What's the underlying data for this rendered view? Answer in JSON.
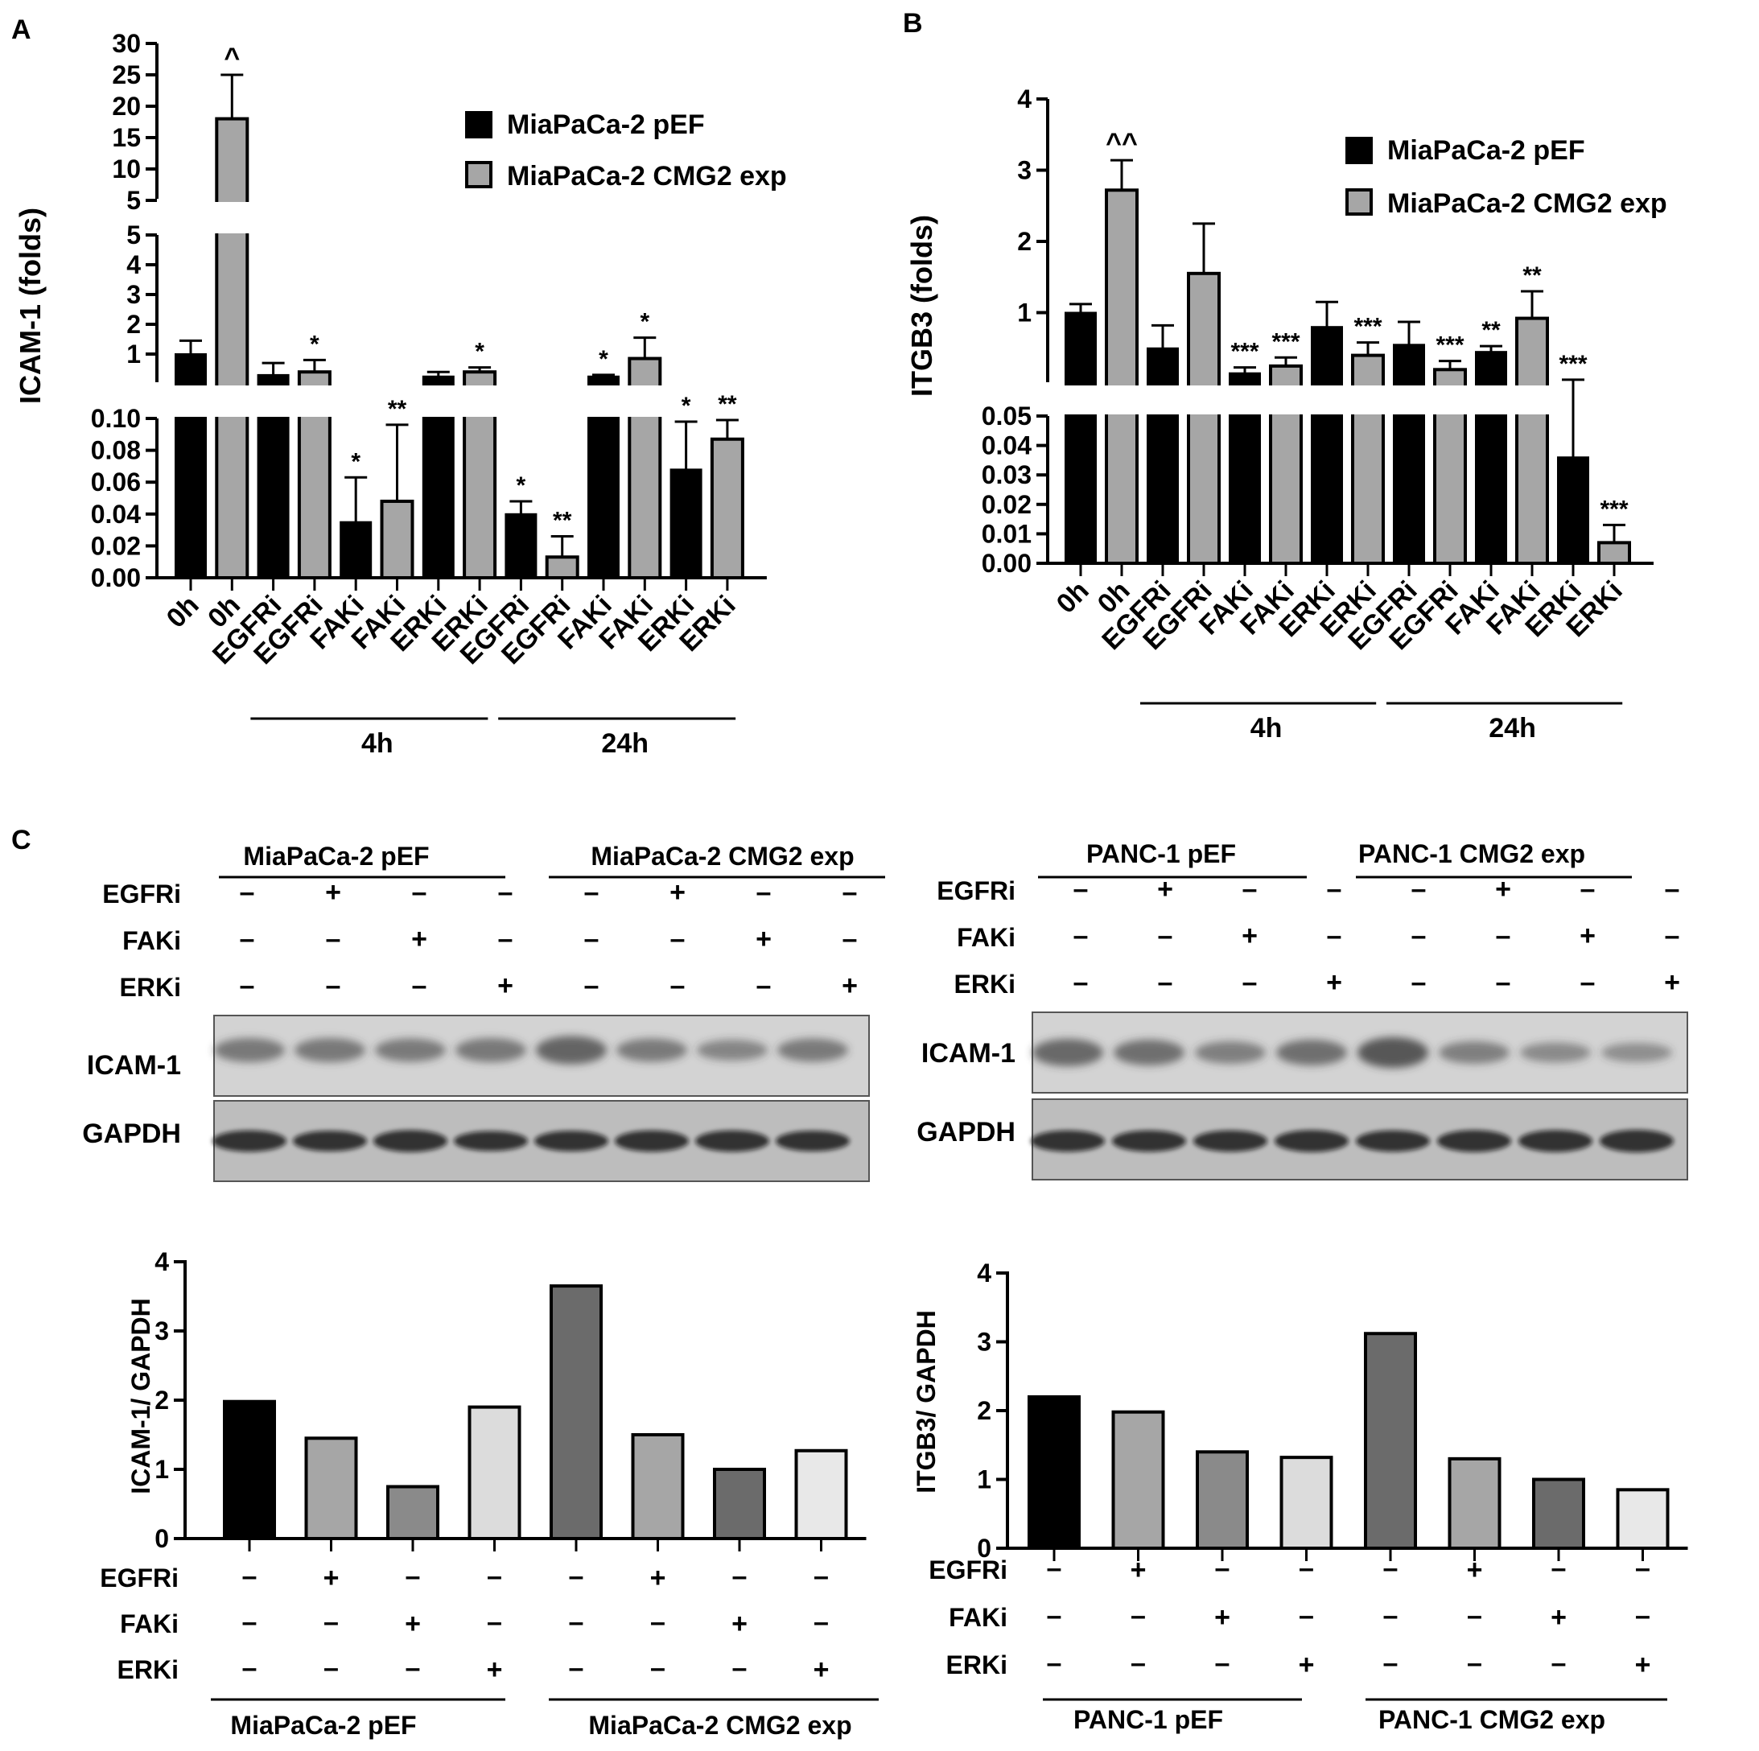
{
  "panels": {
    "a": "A",
    "b": "B",
    "c": "C"
  },
  "legend": {
    "black": "MiaPaCa-2 pEF",
    "gray": "MiaPaCa-2 CMG2 exp"
  },
  "colors": {
    "black": "#000000",
    "gray": "#a6a6a6",
    "dark": "#6b6b6b",
    "mid": "#8a8a8a",
    "light": "#dcdcdc",
    "blot_bg": "#d9d9d9"
  },
  "treatments": [
    "0h",
    "0h",
    "EGFRi",
    "EGFRi",
    "FAKi",
    "FAKi",
    "ERKi",
    "ERKi",
    "EGFRi",
    "EGFRi",
    "FAKi",
    "FAKi",
    "ERKi",
    "ERKi"
  ],
  "time_groups": [
    "4h",
    "24h"
  ],
  "chart_data": [
    {
      "type": "bar",
      "panel": "A",
      "ylabel": "ICAM-1 (folds)",
      "categories": [
        "0h",
        "0h",
        "EGFRi",
        "EGFRi",
        "FAKi",
        "FAKi",
        "ERKi",
        "ERKi",
        "EGFRi",
        "EGFRi",
        "FAKi",
        "FAKi",
        "ERKi",
        "ERKi"
      ],
      "groups": [
        "",
        "",
        "4h",
        "4h",
        "4h",
        "4h",
        "4h",
        "4h",
        "24h",
        "24h",
        "24h",
        "24h",
        "24h",
        "24h"
      ],
      "series_of_bar": [
        "MiaPaCa-2 pEF",
        "MiaPaCa-2 CMG2 exp",
        "MiaPaCa-2 pEF",
        "MiaPaCa-2 CMG2 exp",
        "MiaPaCa-2 pEF",
        "MiaPaCa-2 CMG2 exp",
        "MiaPaCa-2 pEF",
        "MiaPaCa-2 CMG2 exp",
        "MiaPaCa-2 pEF",
        "MiaPaCa-2 CMG2 exp",
        "MiaPaCa-2 pEF",
        "MiaPaCa-2 CMG2 exp",
        "MiaPaCa-2 pEF",
        "MiaPaCa-2 CMG2 exp"
      ],
      "values": [
        1.0,
        18.0,
        0.3,
        0.4,
        0.035,
        0.048,
        0.25,
        0.4,
        0.04,
        0.013,
        0.25,
        0.85,
        0.068,
        0.087
      ],
      "errors": [
        0.45,
        7.0,
        0.4,
        0.4,
        0.028,
        0.048,
        0.15,
        0.15,
        0.008,
        0.013,
        0.05,
        0.7,
        0.03,
        0.012
      ],
      "significance": [
        "",
        "^",
        "",
        "*",
        "*",
        "**",
        "",
        "*",
        "*",
        "**",
        "*",
        "*",
        "*",
        "**"
      ],
      "axis_segments": [
        {
          "range": [
            0,
            0.1
          ],
          "ticks": [
            "0.00",
            "0.02",
            "0.04",
            "0.06",
            "0.08",
            "0.10"
          ]
        },
        {
          "range": [
            0,
            5
          ],
          "ticks": [
            "1",
            "2",
            "3",
            "4",
            "5"
          ]
        },
        {
          "range": [
            5,
            30
          ],
          "ticks": [
            "5",
            "10",
            "15",
            "20",
            "25",
            "30"
          ]
        }
      ]
    },
    {
      "type": "bar",
      "panel": "B",
      "ylabel": "ITGB3 (folds)",
      "categories": [
        "0h",
        "0h",
        "EGFRi",
        "EGFRi",
        "FAKi",
        "FAKi",
        "ERKi",
        "ERKi",
        "EGFRi",
        "EGFRi",
        "FAKi",
        "FAKi",
        "ERKi",
        "ERKi"
      ],
      "groups": [
        "",
        "",
        "4h",
        "4h",
        "4h",
        "4h",
        "4h",
        "4h",
        "24h",
        "24h",
        "24h",
        "24h",
        "24h",
        "24h"
      ],
      "series_of_bar": [
        "MiaPaCa-2 pEF",
        "MiaPaCa-2 CMG2 exp",
        "MiaPaCa-2 pEF",
        "MiaPaCa-2 CMG2 exp",
        "MiaPaCa-2 pEF",
        "MiaPaCa-2 CMG2 exp",
        "MiaPaCa-2 pEF",
        "MiaPaCa-2 CMG2 exp",
        "MiaPaCa-2 pEF",
        "MiaPaCa-2 CMG2 exp",
        "MiaPaCa-2 pEF",
        "MiaPaCa-2 CMG2 exp",
        "MiaPaCa-2 pEF",
        "MiaPaCa-2 CMG2 exp"
      ],
      "values": [
        1.0,
        2.72,
        0.5,
        1.55,
        0.15,
        0.25,
        0.8,
        0.4,
        0.55,
        0.2,
        0.45,
        0.92,
        0.036,
        0.007
      ],
      "errors": [
        0.12,
        0.42,
        0.32,
        0.7,
        0.08,
        0.12,
        0.35,
        0.18,
        0.32,
        0.12,
        0.08,
        0.38,
        0.022,
        0.006
      ],
      "significance": [
        "",
        "^^",
        "",
        "",
        "***",
        "***",
        "",
        "***",
        "",
        "***",
        "**",
        "**",
        "***",
        "***"
      ],
      "axis_segments": [
        {
          "range": [
            0,
            0.05
          ],
          "ticks": [
            "0.00",
            "0.01",
            "0.02",
            "0.03",
            "0.04",
            "0.05"
          ]
        },
        {
          "range": [
            0,
            4
          ],
          "ticks": [
            "1",
            "2",
            "3",
            "4"
          ]
        }
      ]
    },
    {
      "type": "bar",
      "panel": "C-left",
      "ylabel": "ICAM-1/ GAPDH",
      "ylim": [
        0,
        4
      ],
      "ticks": [
        "0",
        "1",
        "2",
        "3",
        "4"
      ],
      "values": [
        1.98,
        1.45,
        0.75,
        1.9,
        3.65,
        1.5,
        1.0,
        1.27
      ],
      "bar_colors": [
        "#000000",
        "#a6a6a6",
        "#8a8a8a",
        "#dcdcdc",
        "#6b6b6b",
        "#a6a6a6",
        "#6b6b6b",
        "#e8e8e8"
      ],
      "groups": [
        "MiaPaCa-2 pEF",
        "MiaPaCa-2 CMG2 exp"
      ]
    },
    {
      "type": "bar",
      "panel": "C-right",
      "ylabel": "ITGB3/ GAPDH",
      "ylim": [
        0,
        4
      ],
      "ticks": [
        "0",
        "1",
        "2",
        "3",
        "4"
      ],
      "values": [
        2.2,
        1.98,
        1.4,
        1.32,
        3.12,
        1.3,
        1.0,
        0.85
      ],
      "bar_colors": [
        "#000000",
        "#a6a6a6",
        "#8a8a8a",
        "#dcdcdc",
        "#6b6b6b",
        "#a6a6a6",
        "#6b6b6b",
        "#e8e8e8"
      ],
      "groups": [
        "PANC-1 pEF",
        "PANC-1 CMG2 exp"
      ]
    }
  ],
  "blots": [
    {
      "groups": [
        "MiaPaCa-2 pEF",
        "MiaPaCa-2 CMG2 exp"
      ],
      "rows": [
        "ICAM-1",
        "GAPDH"
      ]
    },
    {
      "groups": [
        "PANC-1 pEF",
        "PANC-1 CMG2 exp"
      ],
      "rows": [
        "ICAM-1",
        "GAPDH"
      ]
    }
  ],
  "treatment_rows": [
    {
      "label": "EGFRi",
      "signs": [
        "–",
        "+",
        "–",
        "–",
        "–",
        "+",
        "–",
        "–"
      ]
    },
    {
      "label": "FAKi",
      "signs": [
        "–",
        "–",
        "+",
        "–",
        "–",
        "–",
        "+",
        "–"
      ]
    },
    {
      "label": "ERKi",
      "signs": [
        "–",
        "–",
        "–",
        "+",
        "–",
        "–",
        "–",
        "+"
      ]
    }
  ]
}
